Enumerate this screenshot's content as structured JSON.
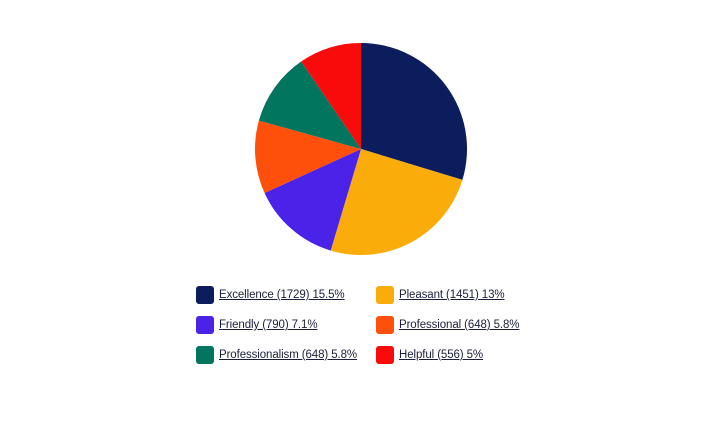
{
  "chart_data": {
    "type": "pie",
    "slices": [
      {
        "label": "Excellence (1729) 15.5%",
        "name": "Excellence",
        "count": 1729,
        "percent": 15.5,
        "color": "#0c1d5e"
      },
      {
        "label": "Pleasant (1451) 13%",
        "name": "Pleasant",
        "count": 1451,
        "percent": 13,
        "color": "#f9ac0a"
      },
      {
        "label": "Friendly (790) 7.1%",
        "name": "Friendly",
        "count": 790,
        "percent": 7.1,
        "color": "#4a22e8"
      },
      {
        "label": "Professional (648) 5.8%",
        "name": "Professional",
        "count": 648,
        "percent": 5.8,
        "color": "#fe500b"
      },
      {
        "label": "Professionalism (648) 5.8%",
        "name": "Professionalism",
        "count": 648,
        "percent": 5.8,
        "color": "#02755e"
      },
      {
        "label": "Helpful (556) 5%",
        "name": "Helpful",
        "count": 556,
        "percent": 5,
        "color": "#f90b0b"
      }
    ],
    "legend_position": "bottom"
  }
}
